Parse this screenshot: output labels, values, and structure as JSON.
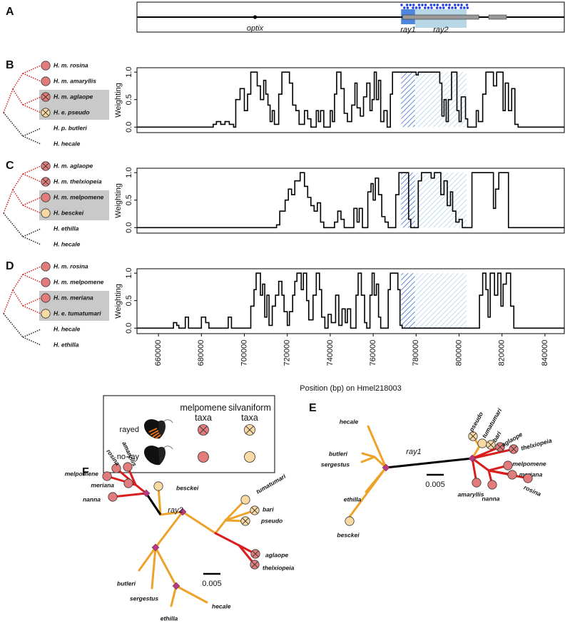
{
  "panel_labels": [
    "A",
    "B",
    "C",
    "D",
    "E",
    "F"
  ],
  "gene_track": {
    "features": [
      {
        "label": "optix",
        "position": 705000
      },
      {
        "label": "ray1",
        "start": 773000,
        "end": 779500
      },
      {
        "label": "ray2",
        "start": 779500,
        "end": 803500
      }
    ]
  },
  "chart_data": [
    {
      "type": "line",
      "step": true,
      "color": "#000000",
      "ylabel": "Weighting",
      "xlim": [
        650000,
        849000
      ],
      "ylim": [
        -0.1,
        1.08
      ],
      "yticks": [
        {
          "value": 0,
          "label": "0.0"
        },
        {
          "value": 0.5,
          "label": "0.5"
        },
        {
          "value": 1,
          "label": "1.0"
        }
      ],
      "x": [
        650000,
        685500,
        687000,
        689000,
        691000,
        693000,
        695000,
        696000,
        698000,
        700000,
        701500,
        703000,
        706000,
        707500,
        709000,
        710000,
        711000,
        712000,
        713000,
        714000,
        716000,
        717500,
        721000,
        722500,
        724000,
        725500,
        728000,
        729500,
        731000,
        733500,
        734500,
        735500,
        737000,
        740000,
        741000,
        742000,
        743000,
        745000,
        746500,
        748000,
        750000,
        751500,
        752500,
        754000,
        755500,
        757000,
        758500,
        759500,
        760500,
        761500,
        762500,
        763500,
        765000,
        766500,
        768000,
        769000,
        780000,
        781000,
        791000,
        792000,
        793000,
        794000,
        795000,
        796500,
        799000,
        800000,
        801000,
        803000,
        804000,
        808000,
        809000,
        811000,
        812500,
        816000,
        817500,
        820500,
        821500,
        823000,
        824500,
        826000,
        827500,
        849000
      ],
      "values": [
        0,
        0.05,
        0.1,
        0.05,
        0.1,
        0.05,
        0,
        0.5,
        0.7,
        0.3,
        0.6,
        1,
        0.75,
        0.5,
        0.85,
        0.6,
        0.4,
        0.1,
        0.3,
        0.05,
        0.6,
        1,
        0.8,
        0.4,
        0.3,
        0.05,
        0.3,
        0.15,
        0,
        0.3,
        0.1,
        0.3,
        0,
        0.3,
        0.1,
        0.6,
        1,
        0.7,
        0.25,
        0.1,
        0.4,
        0.8,
        0.35,
        0.2,
        0.55,
        0.8,
        0.3,
        0.5,
        1,
        0.5,
        0.85,
        0.1,
        0.3,
        0,
        0.6,
        1,
        0.95,
        1,
        0.8,
        0.2,
        0.5,
        0.1,
        0.5,
        1,
        0.3,
        0.1,
        0.55,
        0.15,
        0,
        0.3,
        0.1,
        0.6,
        1,
        0.75,
        1,
        0.3,
        0.8,
        0.3,
        0.7,
        0.05,
        0,
        0
      ]
    },
    {
      "type": "line",
      "step": true,
      "color": "#000000",
      "ylabel": "Weighting",
      "xlim": [
        650000,
        849000
      ],
      "ylim": [
        -0.1,
        1.08
      ],
      "yticks": [
        {
          "value": 0,
          "label": "0.0"
        },
        {
          "value": 0.5,
          "label": "0.5"
        },
        {
          "value": 1,
          "label": "1.0"
        }
      ],
      "x": [
        650000,
        715000,
        716500,
        719000,
        720500,
        722000,
        723500,
        726000,
        728000,
        729500,
        731000,
        732500,
        734000,
        735500,
        737000,
        742000,
        743500,
        745000,
        746500,
        751000,
        752500,
        753500,
        755000,
        757500,
        759000,
        760000,
        761000,
        762500,
        764000,
        765500,
        767000,
        770500,
        772000,
        776500,
        777500,
        779500,
        781000,
        782500,
        787000,
        788500,
        791500,
        793000,
        794500,
        796000,
        797000,
        798500,
        800000,
        801500,
        806000,
        815000,
        816000,
        817000,
        818500,
        822000,
        823000,
        849000
      ],
      "values": [
        0,
        0.05,
        0.3,
        0.5,
        0.7,
        0.6,
        0.85,
        1,
        0.75,
        0.55,
        0.4,
        0.3,
        0.45,
        0.1,
        0,
        0.1,
        0.3,
        0.15,
        0,
        0.35,
        0.1,
        0.35,
        0,
        0.65,
        0.8,
        0.5,
        0.9,
        0.6,
        0.2,
        0.1,
        0,
        0.6,
        1,
        0.15,
        0,
        0,
        0.85,
        1,
        0.9,
        1,
        0.6,
        0.85,
        0.4,
        0.65,
        0.3,
        0.1,
        0.15,
        0,
        1,
        1,
        0.35,
        0.7,
        1,
        1,
        0,
        0
      ]
    },
    {
      "type": "line",
      "step": true,
      "color": "#000000",
      "ylabel": "Weighting",
      "xlabel": "Position (bp) on Hmel218003",
      "xlim": [
        650000,
        849000
      ],
      "ylim": [
        -0.1,
        1.08
      ],
      "xticks": [
        660000,
        680000,
        700000,
        720000,
        740000,
        760000,
        780000,
        800000,
        820000,
        840000
      ],
      "yticks": [
        {
          "value": 0,
          "label": "0.0"
        },
        {
          "value": 0.5,
          "label": "0.5"
        },
        {
          "value": 1,
          "label": "1.0"
        }
      ],
      "x": [
        650000,
        667000,
        668500,
        669500,
        672500,
        674000,
        680000,
        682000,
        683500,
        692500,
        694000,
        703000,
        704500,
        705500,
        707500,
        708500,
        709500,
        710500,
        711500,
        713000,
        714500,
        716000,
        717500,
        718500,
        720000,
        721000,
        722500,
        723500,
        724500,
        726500,
        727500,
        729000,
        730000,
        732000,
        733500,
        735000,
        736000,
        737500,
        739000,
        740500,
        742500,
        744000,
        745500,
        747000,
        748000,
        749500,
        752000,
        753000,
        754500,
        756000,
        757000,
        758500,
        759500,
        760500,
        761500,
        762500,
        763500,
        767000,
        768000,
        771500,
        772500,
        773500,
        809500,
        811000,
        812500,
        813500,
        814500,
        816500,
        818000,
        819500,
        820500,
        822000,
        824000,
        825500,
        849000
      ],
      "values": [
        0,
        0.1,
        0.05,
        0,
        0.2,
        0,
        0.2,
        0.1,
        0,
        0.2,
        0,
        0.4,
        0.7,
        1,
        0.6,
        0.8,
        0.2,
        0.6,
        0.05,
        0.4,
        0.6,
        0.85,
        0.6,
        0.3,
        0.05,
        0.3,
        0.6,
        0.85,
        1,
        0.7,
        1,
        0.5,
        0.15,
        0.6,
        1,
        0.7,
        0.2,
        0,
        0.25,
        0.1,
        0.6,
        0.05,
        0.35,
        0.1,
        0.35,
        0,
        0.6,
        1,
        0.6,
        0.1,
        0,
        0.6,
        1,
        0.6,
        0.8,
        0.2,
        0,
        0.7,
        1,
        0.7,
        0.05,
        0,
        0.6,
        1,
        0.7,
        0.2,
        1,
        0.6,
        1,
        0.4,
        0.8,
        1,
        0.4,
        0,
        0
      ]
    }
  ],
  "cladograms": [
    {
      "taxa": [
        {
          "label": "H. m. rosina",
          "marker": {
            "color": "#e27c7c",
            "rayed": false
          }
        },
        {
          "label": "H. m. amaryllis",
          "marker": {
            "color": "#e27c7c",
            "rayed": false
          }
        },
        {
          "label": "H. m. aglaope",
          "marker": {
            "color": "#e27c7c",
            "rayed": true
          },
          "highlighted": true
        },
        {
          "label": "H. e. pseudo",
          "marker": {
            "color": "#f8d9a4",
            "rayed": true
          },
          "highlighted": true
        },
        {
          "label": "H. p. butleri"
        },
        {
          "label": "H. hecale"
        }
      ]
    },
    {
      "taxa": [
        {
          "label": "H. m. aglaope",
          "marker": {
            "color": "#e27c7c",
            "rayed": true
          }
        },
        {
          "label": "H. m. thelxiopeia",
          "marker": {
            "color": "#e27c7c",
            "rayed": true
          }
        },
        {
          "label": "H. m. melpomene",
          "marker": {
            "color": "#e27c7c",
            "rayed": false
          },
          "highlighted": true
        },
        {
          "label": "H. besckei",
          "marker": {
            "color": "#f8d9a4",
            "rayed": false
          },
          "highlighted": true
        },
        {
          "label": "H. ethilla"
        },
        {
          "label": "H. hecale"
        }
      ]
    },
    {
      "taxa": [
        {
          "label": "H. m. rosina",
          "marker": {
            "color": "#e27c7c",
            "rayed": false
          }
        },
        {
          "label": "H. m. melpomene",
          "marker": {
            "color": "#e27c7c",
            "rayed": false
          }
        },
        {
          "label": "H. m. meriana",
          "marker": {
            "color": "#e27c7c",
            "rayed": false
          },
          "highlighted": true
        },
        {
          "label": "H. e. tumatumari",
          "marker": {
            "color": "#f8d9a4",
            "rayed": false
          },
          "highlighted": true
        },
        {
          "label": "H. hecale"
        },
        {
          "label": "H. ethilla"
        }
      ]
    }
  ],
  "legend": {
    "columns": [
      {
        "label": "melpomene taxa",
        "color": "#e27c7c"
      },
      {
        "label": "silvaniform taxa",
        "color": "#f8d9a4"
      }
    ],
    "rows": [
      {
        "label": "rayed",
        "rayed": true
      },
      {
        "label": "no-ray",
        "rayed": false
      }
    ]
  },
  "trees": [
    {
      "name": "ray1",
      "scale": "0.005",
      "tips": [
        {
          "label": "hecale"
        },
        {
          "label": "butleri"
        },
        {
          "label": "sergestus"
        },
        {
          "label": "ethilla"
        },
        {
          "label": "besckei",
          "marker": {
            "color": "#f8d9a4",
            "rayed": false
          }
        },
        {
          "label": "pseudo",
          "marker": {
            "color": "#f8d9a4",
            "rayed": true
          }
        },
        {
          "label": "tumatumari",
          "marker": {
            "color": "#f8d9a4",
            "rayed": false
          }
        },
        {
          "label": "bari",
          "marker": {
            "color": "#f8d9a4",
            "rayed": true
          }
        },
        {
          "label": "aglaope",
          "marker": {
            "color": "#e27c7c",
            "rayed": true
          }
        },
        {
          "label": "thelxiopeia",
          "marker": {
            "color": "#e27c7c",
            "rayed": true
          }
        },
        {
          "label": "melpomene",
          "marker": {
            "color": "#e27c7c",
            "rayed": false
          }
        },
        {
          "label": "meriana",
          "marker": {
            "color": "#e27c7c",
            "rayed": false
          }
        },
        {
          "label": "rosina",
          "marker": {
            "color": "#e27c7c",
            "rayed": false
          }
        },
        {
          "label": "nanna",
          "marker": {
            "color": "#e27c7c",
            "rayed": false
          }
        },
        {
          "label": "amaryllis",
          "marker": {
            "color": "#e27c7c",
            "rayed": false
          }
        }
      ]
    },
    {
      "name": "ray2",
      "scale": "0.005",
      "tips": [
        {
          "label": "besckei",
          "marker": {
            "color": "#f8d9a4",
            "rayed": false
          }
        },
        {
          "label": "rosina",
          "marker": {
            "color": "#e27c7c",
            "rayed": false
          }
        },
        {
          "label": "amaryllis",
          "marker": {
            "color": "#e27c7c",
            "rayed": false
          }
        },
        {
          "label": "melpomene",
          "marker": {
            "color": "#e27c7c",
            "rayed": false
          }
        },
        {
          "label": "meriana",
          "marker": {
            "color": "#e27c7c",
            "rayed": false
          }
        },
        {
          "label": "nanna",
          "marker": {
            "color": "#e27c7c",
            "rayed": false
          }
        },
        {
          "label": "tumatumari",
          "marker": {
            "color": "#f8d9a4",
            "rayed": false
          }
        },
        {
          "label": "bari",
          "marker": {
            "color": "#f8d9a4",
            "rayed": true
          }
        },
        {
          "label": "pseudo",
          "marker": {
            "color": "#f8d9a4",
            "rayed": true
          }
        },
        {
          "label": "aglaope",
          "marker": {
            "color": "#e27c7c",
            "rayed": true
          }
        },
        {
          "label": "thelxiopeia",
          "marker": {
            "color": "#e27c7c",
            "rayed": true
          }
        },
        {
          "label": "butleri"
        },
        {
          "label": "sergestus"
        },
        {
          "label": "ethilla"
        },
        {
          "label": "hecale"
        }
      ]
    }
  ]
}
